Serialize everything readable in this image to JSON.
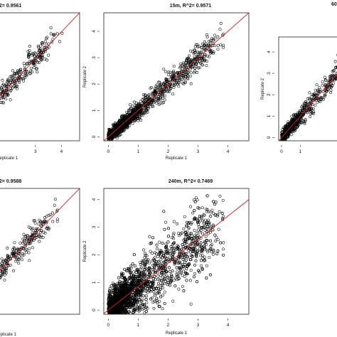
{
  "chart_data": [
    {
      "type": "scatter",
      "title": "R^2= 0.9561",
      "xlabel": "Replicate 1",
      "ylabel": "",
      "x_ticks": [
        "3",
        "4"
      ],
      "y_ticks": [],
      "xlim": [
        0,
        4.7
      ],
      "ylim": [
        0,
        4.7
      ],
      "fit_line": {
        "slope": 1.0,
        "intercept": 0.0
      },
      "point_color": "#000000",
      "line_color": "#d62020",
      "scatter_spread": 0.16,
      "n_points": 900
    },
    {
      "type": "scatter",
      "title": "15m, R^2= 0.9571",
      "xlabel": "Replicate 1",
      "ylabel": "Replicate 2",
      "x_ticks": [
        "0",
        "1",
        "2",
        "3",
        "4"
      ],
      "y_ticks": [
        "0",
        "1",
        "2",
        "3",
        "4"
      ],
      "xlim": [
        -0.15,
        4.7
      ],
      "ylim": [
        -0.15,
        4.7
      ],
      "fit_line": {
        "slope": 1.0,
        "intercept": 0.0
      },
      "point_color": "#000000",
      "line_color": "#d62020",
      "scatter_spread": 0.16,
      "n_points": 1400
    },
    {
      "type": "scatter",
      "title": "60",
      "xlabel": "",
      "ylabel": "Replicate 2",
      "x_ticks": [
        "0",
        "1"
      ],
      "y_ticks": [
        "0",
        "1",
        "2",
        "3",
        "4"
      ],
      "xlim": [
        -0.15,
        4.7
      ],
      "ylim": [
        -0.15,
        4.7
      ],
      "fit_line": {
        "slope": 1.0,
        "intercept": 0.0
      },
      "point_color": "#000000",
      "line_color": "#d62020",
      "scatter_spread": 0.2,
      "n_points": 700
    },
    {
      "type": "scatter",
      "title": "R^2= 0.9588",
      "xlabel": "Replicate 1",
      "ylabel": "",
      "x_ticks": [],
      "y_ticks": [],
      "xlim": [
        0,
        4.7
      ],
      "ylim": [
        0,
        4.7
      ],
      "fit_line": {
        "slope": 1.0,
        "intercept": 0.0
      },
      "point_color": "#000000",
      "line_color": "#d62020",
      "scatter_spread": 0.16,
      "n_points": 800
    },
    {
      "type": "scatter",
      "title": "240m, R^2= 0.7469",
      "xlabel": "Replicate 1",
      "ylabel": "Replicate 2",
      "x_ticks": [
        "0",
        "1",
        "2",
        "3",
        "4"
      ],
      "y_ticks": [
        "0",
        "1",
        "2",
        "3",
        "4"
      ],
      "xlim": [
        -0.15,
        4.7
      ],
      "ylim": [
        -0.15,
        4.4
      ],
      "fit_line": {
        "slope": 0.85,
        "intercept": 0.0
      },
      "point_color": "#000000",
      "line_color": "#d62020",
      "scatter_spread": 0.45,
      "n_points": 2600
    }
  ]
}
